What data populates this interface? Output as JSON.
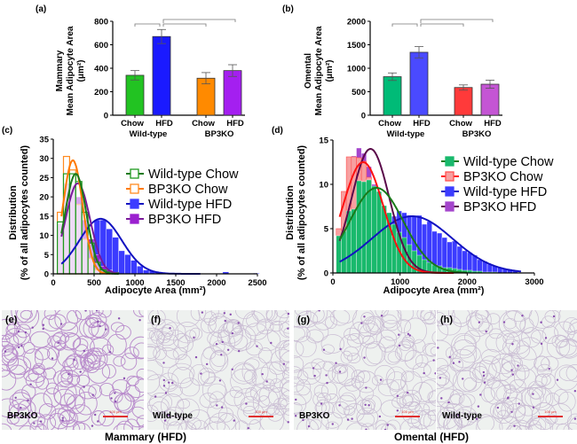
{
  "bar_charts": [
    {
      "panel": "(a)",
      "ylabel_lines": [
        "Mammary",
        "Mean Adipocyte Area",
        "(μm²)"
      ],
      "ylim": [
        0,
        800
      ],
      "yticks": [
        0,
        200,
        400,
        600,
        800
      ],
      "bars": [
        {
          "label": "Chow",
          "value": 340,
          "err": 40,
          "color": "#22c322"
        },
        {
          "label": "HFD",
          "value": 670,
          "err": 60,
          "color": "#1a1aff"
        },
        {
          "label": "Chow",
          "value": 315,
          "err": 48,
          "color": "#ff8a00"
        },
        {
          "label": "HFD",
          "value": 380,
          "err": 50,
          "color": "#a41ff0"
        }
      ],
      "groups": [
        "Wild-type",
        "BP3KO"
      ]
    },
    {
      "panel": "(b)",
      "ylabel_lines": [
        "Omental",
        "Mean Adipocyte Area",
        "(μm²)"
      ],
      "ylim": [
        0,
        2000
      ],
      "yticks": [
        0,
        500,
        1000,
        1500,
        2000
      ],
      "bars": [
        {
          "label": "Chow",
          "value": 820,
          "err": 80,
          "color": "#00bb77"
        },
        {
          "label": "HFD",
          "value": 1340,
          "err": 120,
          "color": "#4a4aff"
        },
        {
          "label": "Chow",
          "value": 590,
          "err": 55,
          "color": "#ff3a3a"
        },
        {
          "label": "HFD",
          "value": 660,
          "err": 85,
          "color": "#c455d4"
        }
      ],
      "groups": [
        "Wild-type",
        "BP3KO"
      ]
    }
  ],
  "chart_data": [
    {
      "type": "bar",
      "title": "(a)",
      "categories": [
        "Wild-type Chow",
        "Wild-type HFD",
        "BP3KO Chow",
        "BP3KO HFD"
      ],
      "values": [
        340,
        670,
        315,
        380
      ],
      "ylabel": "Mammary Mean Adipocyte Area (μm²)",
      "ylim": [
        0,
        800
      ]
    },
    {
      "type": "bar",
      "title": "(b)",
      "categories": [
        "Wild-type Chow",
        "Wild-type HFD",
        "BP3KO Chow",
        "BP3KO HFD"
      ],
      "values": [
        820,
        1340,
        590,
        660
      ],
      "ylabel": "Omental Mean Adipocyte Area (μm²)",
      "ylim": [
        0,
        2000
      ]
    },
    {
      "type": "bar",
      "title": "(c)",
      "xlabel": "Adipocyte Area (mm²)",
      "ylabel_lines": [
        "Distribution",
        "(% of all adipocytes counted)"
      ],
      "xlim": [
        0,
        2500
      ],
      "ylim": [
        0,
        35
      ],
      "xticks": [
        0,
        500,
        1000,
        1500,
        2000,
        2500
      ],
      "yticks": [
        0,
        5,
        10,
        15,
        20,
        25,
        30,
        35
      ],
      "bin_start": 50,
      "bin_width": 75,
      "legend": "top-right",
      "series": [
        {
          "name": "Wild-type HFD",
          "style": "filled",
          "color": "#3b3bff",
          "curve_color": "#1212c0",
          "fit": {
            "amp": 14.3,
            "mean": 580,
            "sd": 260,
            "from": 100,
            "to": 1800
          },
          "values": [
            0,
            0,
            0,
            0,
            0,
            0,
            14,
            14,
            11.7,
            9.5,
            6,
            5,
            3.5,
            2,
            1,
            0.8,
            0.5,
            0.3,
            0.2,
            0.2,
            0.1,
            0.1,
            0.1,
            0.1,
            0.1,
            0,
            0,
            0.5,
            0,
            0,
            0,
            0,
            0.2
          ]
        },
        {
          "name": "BP3KO HFD",
          "style": "filled",
          "color": "#9b20d0",
          "curve_color": "#7a1a9a",
          "fit": {
            "amp": 23.5,
            "mean": 300,
            "sd": 150,
            "from": 100,
            "to": 800
          },
          "values": [
            13,
            23.5,
            23,
            20,
            14,
            9,
            5,
            2,
            1
          ]
        },
        {
          "name": "BP3KO Chow",
          "style": "outline",
          "color": "#ff8a20",
          "curve_color": "#ff7a00",
          "fit": {
            "amp": 29.5,
            "mean": 240,
            "sd": 120,
            "from": 100,
            "to": 700
          },
          "values": [
            16,
            30.5,
            27,
            18,
            9,
            4,
            1,
            0.3
          ]
        },
        {
          "name": "Wild-type Chow",
          "style": "outline",
          "color": "#1f9a1f",
          "curve_color": "#1a7a1a",
          "fit": {
            "amp": 26,
            "mean": 275,
            "sd": 130,
            "from": 100,
            "to": 800
          },
          "values": [
            13.5,
            26,
            26,
            24,
            16,
            8,
            3,
            1,
            0.5,
            0.3
          ]
        }
      ],
      "legend_order": [
        "Wild-type Chow",
        "BP3KO Chow",
        "Wild-type HFD",
        "BP3KO HFD"
      ]
    },
    {
      "type": "bar",
      "title": "(d)",
      "xlabel": "Adipocyte Area  (mm²)",
      "ylabel_lines": [
        "Distribution",
        "(% of all adipocytes counted)"
      ],
      "xlim": [
        0,
        3000
      ],
      "ylim": [
        0,
        15
      ],
      "xticks": [
        0,
        1000,
        2000,
        3000
      ],
      "yticks": [
        0,
        5,
        10,
        15
      ],
      "bin_start": 50,
      "bin_width": 75,
      "legend": "top-right",
      "series": [
        {
          "name": "Wild-type HFD",
          "style": "filled",
          "color": "#3c3cff",
          "curve_color": "#1212c0",
          "fit": {
            "amp": 6.4,
            "mean": 1180,
            "sd": 600,
            "from": 100,
            "to": 2800
          },
          "values": [
            1,
            1.5,
            2,
            2.5,
            3,
            3.5,
            4,
            4.5,
            5,
            5.5,
            6,
            6.4,
            7,
            6.8,
            6.5,
            6.4,
            6.5,
            5.5,
            5.8,
            4.7,
            4.5,
            4,
            3.5,
            3.6,
            3,
            2.5,
            2.3,
            2,
            1.5,
            1.3,
            1,
            0.8,
            0.6,
            0.5,
            0.4,
            0.3
          ]
        },
        {
          "name": "BP3KO HFD",
          "style": "filled",
          "color": "#a444cc",
          "curve_color": "#5a0a4a",
          "fit": {
            "amp": 14,
            "mean": 560,
            "sd": 280,
            "from": 100,
            "to": 1700
          },
          "values": [
            4,
            6,
            9,
            13.2,
            14.1,
            13.5,
            12,
            10,
            7.5,
            5,
            3.5,
            2,
            1,
            0.5
          ]
        },
        {
          "name": "BP3KO Chow",
          "style": "light",
          "color": "#f7a0a0",
          "curve_color": "#ff1010",
          "fit": {
            "amp": 12.5,
            "mean": 450,
            "sd": 300,
            "from": 100,
            "to": 1800
          },
          "values": [
            5,
            9.2,
            13.1,
            13.1,
            13,
            12.6,
            10.8,
            9,
            7,
            5,
            3.5,
            2,
            1.2,
            0.5,
            0.3
          ]
        },
        {
          "name": "Wild-type Chow",
          "style": "filled",
          "color": "#19b96c",
          "curve_color": "#1a7a1a",
          "fit": {
            "amp": 9.6,
            "mean": 650,
            "sd": 400,
            "from": 100,
            "to": 2000
          },
          "values": [
            4.2,
            4.7,
            7,
            7.2,
            10.4,
            10.3,
            10.5,
            9.8,
            9.2,
            7.6,
            6.8,
            5.5,
            4.6,
            4,
            3.2,
            2.5,
            2,
            1.5,
            1.2,
            0.9,
            0.8,
            0.6,
            0.6,
            0.5,
            0.4,
            0.3,
            0.3,
            0.2,
            0.2,
            0.1,
            0.1,
            0.1
          ]
        }
      ],
      "legend_order": [
        "Wild-type Chow",
        "BP3KO Chow",
        "Wild-type HFD",
        "BP3KO HFD"
      ]
    }
  ],
  "micrographs": [
    {
      "panel": "(e)",
      "label": "BP3KO",
      "scale": "100 μm"
    },
    {
      "panel": "(f)",
      "label": "Wild-type",
      "scale": "100 μm"
    },
    {
      "panel": "(g)",
      "label": "BP3KO",
      "scale": "100 μm"
    },
    {
      "panel": "(h)",
      "label": "Wild-type",
      "scale": "100 μm"
    }
  ],
  "captions": {
    "mammary": "Mammary (HFD)",
    "omental": "Omental (HFD)"
  }
}
